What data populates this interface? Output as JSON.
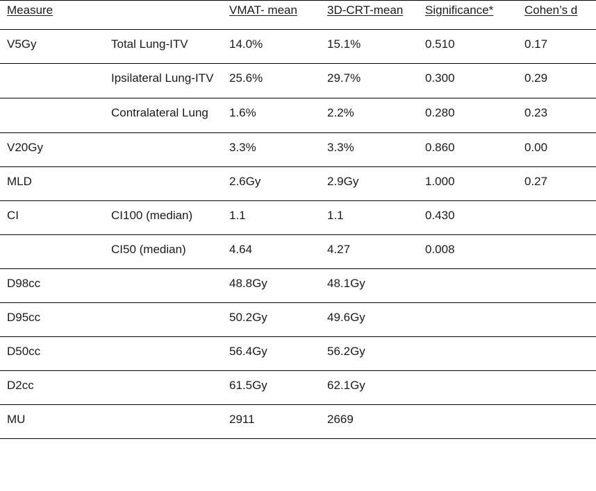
{
  "header": [
    "Measure",
    "",
    "VMAT- mean",
    "3D-CRT-mean",
    "Significance*",
    "Cohen’s d"
  ],
  "rows": [
    {
      "measure": "V5Gy",
      "sub": "Total Lung-ITV",
      "vmat": "14.0%",
      "crt": "15.1%",
      "sig": "0.510",
      "d": "0.17"
    },
    {
      "measure": "",
      "sub": "Ipsilateral Lung-ITV",
      "vmat": "25.6%",
      "crt": "29.7%",
      "sig": "0.300",
      "d": "0.29"
    },
    {
      "measure": "",
      "sub": "Contralateral Lung",
      "vmat": "1.6%",
      "crt": "2.2%",
      "sig": "0.280",
      "d": "0.23"
    },
    {
      "measure": "V20Gy",
      "sub": "",
      "vmat": "3.3%",
      "crt": "3.3%",
      "sig": "0.860",
      "d": "0.00"
    },
    {
      "measure": "MLD",
      "sub": "",
      "vmat": "2.6Gy",
      "crt": "2.9Gy",
      "sig": "1.000",
      "d": "0.27"
    },
    {
      "measure": "CI",
      "sub": "CI100 (median)",
      "vmat": "1.1",
      "crt": "1.1",
      "sig": "0.430",
      "d": ""
    },
    {
      "measure": "",
      "sub": "CI50 (median)",
      "vmat": "4.64",
      "crt": "4.27",
      "sig": "0.008",
      "d": ""
    },
    {
      "measure": "D98cc",
      "sub": "",
      "vmat": "48.8Gy",
      "crt": "48.1Gy",
      "sig": "",
      "d": ""
    },
    {
      "measure": "D95cc",
      "sub": "",
      "vmat": "50.2Gy",
      "crt": "49.6Gy",
      "sig": "",
      "d": ""
    },
    {
      "measure": "D50cc",
      "sub": "",
      "vmat": "56.4Gy",
      "crt": "56.2Gy",
      "sig": "",
      "d": ""
    },
    {
      "measure": "D2cc",
      "sub": "",
      "vmat": "61.5Gy",
      "crt": "62.1Gy",
      "sig": "",
      "d": ""
    },
    {
      "measure": "MU",
      "sub": "",
      "vmat": "2911",
      "crt": "2669",
      "sig": "",
      "d": ""
    }
  ]
}
